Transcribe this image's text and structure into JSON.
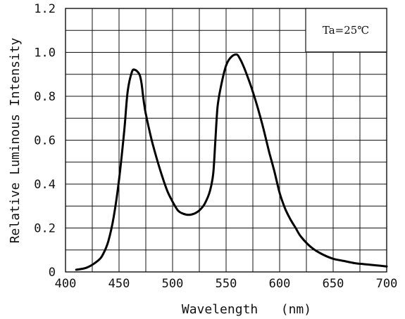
{
  "chart_data": {
    "type": "line",
    "title": "",
    "xlabel": "Wavelength   (nm)",
    "ylabel": "Relative Luminous Intensity",
    "annotation": "Ta=25℃",
    "xlim": [
      400,
      700
    ],
    "ylim": [
      0,
      1.2
    ],
    "x_ticks": [
      400,
      450,
      500,
      550,
      600,
      650,
      700
    ],
    "x_tick_labels": [
      "400",
      "450",
      "500",
      "550",
      "600",
      "650",
      "700"
    ],
    "y_ticks": [
      0,
      0.2,
      0.4,
      0.6,
      0.8,
      1.0,
      1.2
    ],
    "y_tick_labels": [
      "0",
      "0.2",
      "0.4",
      "0.6",
      "0.8",
      "1.0",
      "1.2"
    ],
    "grid": true,
    "line_color": "#000000",
    "series": [
      {
        "x": [
          410,
          420,
          430,
          435,
          440,
          445,
          450,
          455,
          458,
          462,
          465,
          469,
          471,
          473,
          475,
          480,
          485,
          490,
          495,
          500,
          505,
          510,
          515,
          520,
          525,
          530,
          535,
          538,
          540,
          542,
          545,
          550,
          555,
          560,
          563,
          566,
          570,
          575,
          580,
          585,
          590,
          595,
          600,
          605,
          610,
          615,
          620,
          630,
          640,
          650,
          660,
          670,
          680,
          690,
          700
        ],
        "y": [
          0.01,
          0.02,
          0.05,
          0.08,
          0.14,
          0.25,
          0.42,
          0.65,
          0.82,
          0.91,
          0.92,
          0.9,
          0.86,
          0.78,
          0.72,
          0.61,
          0.52,
          0.44,
          0.37,
          0.32,
          0.28,
          0.265,
          0.26,
          0.265,
          0.28,
          0.31,
          0.37,
          0.45,
          0.6,
          0.75,
          0.84,
          0.94,
          0.98,
          0.99,
          0.97,
          0.94,
          0.89,
          0.82,
          0.74,
          0.65,
          0.55,
          0.46,
          0.36,
          0.29,
          0.24,
          0.2,
          0.16,
          0.11,
          0.08,
          0.06,
          0.05,
          0.04,
          0.035,
          0.03,
          0.025
        ]
      }
    ]
  }
}
